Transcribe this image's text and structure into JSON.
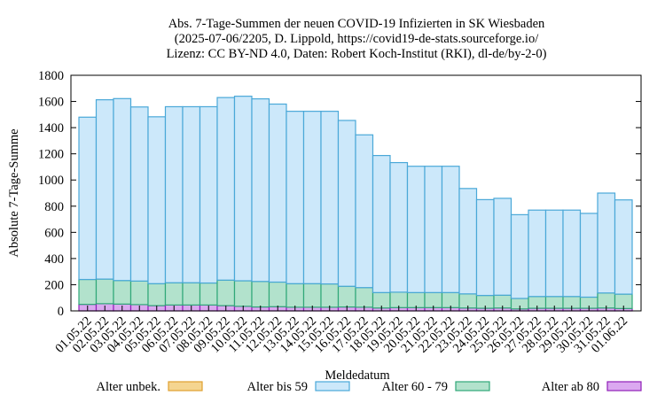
{
  "chart_data": {
    "type": "bar",
    "stacked": true,
    "title_lines": [
      "Abs. 7-Tage-Summen der neuen COVID-19 Infizierten in SK Wiesbaden",
      "(2025-07-06/2205, D. Lippold, https://covid19-de-stats.sourceforge.io/",
      "Lizenz: CC BY-ND 4.0, Daten: Robert Koch-Institut (RKI), dl-de/by-2-0)"
    ],
    "xlabel": "Meldedatum",
    "ylabel": "Absolute 7-Tage-Summe",
    "ylim": [
      0,
      1800
    ],
    "yticks": [
      0,
      200,
      400,
      600,
      800,
      1000,
      1200,
      1400,
      1600,
      1800
    ],
    "grid": false,
    "legend_position": "bottom",
    "categories": [
      "01.05.22",
      "02.05.22",
      "03.05.22",
      "04.05.22",
      "05.05.22",
      "06.05.22",
      "07.05.22",
      "08.05.22",
      "09.05.22",
      "10.05.22",
      "11.05.22",
      "12.05.22",
      "13.05.22",
      "14.05.22",
      "15.05.22",
      "16.05.22",
      "17.05.22",
      "18.05.22",
      "19.05.22",
      "20.05.22",
      "21.05.22",
      "22.05.22",
      "23.05.22",
      "24.05.22",
      "25.05.22",
      "26.05.22",
      "27.05.22",
      "28.05.22",
      "29.05.22",
      "30.05.22",
      "31.05.22",
      "01.06.22"
    ],
    "series": [
      {
        "name": "Alter unbek.",
        "color": "#f5d590",
        "stroke": "#e0a030",
        "values": [
          0,
          0,
          0,
          0,
          0,
          0,
          0,
          0,
          0,
          0,
          0,
          0,
          0,
          0,
          0,
          0,
          0,
          0,
          0,
          0,
          0,
          0,
          0,
          0,
          0,
          0,
          0,
          0,
          0,
          0,
          0,
          0
        ]
      },
      {
        "name": "Alter ab 80",
        "color": "#dba8f0",
        "stroke": "#9020b8",
        "values": [
          50,
          55,
          52,
          48,
          40,
          45,
          45,
          45,
          40,
          35,
          30,
          32,
          28,
          28,
          28,
          30,
          28,
          22,
          25,
          25,
          25,
          25,
          22,
          20,
          22,
          15,
          20,
          20,
          20,
          20,
          22,
          18
        ]
      },
      {
        "name": "Alter 60 - 79",
        "color": "#b2e2cc",
        "stroke": "#30a878",
        "values": [
          190,
          188,
          180,
          180,
          168,
          170,
          170,
          168,
          195,
          195,
          195,
          188,
          180,
          180,
          178,
          158,
          150,
          118,
          118,
          115,
          115,
          115,
          108,
          98,
          98,
          80,
          90,
          90,
          90,
          85,
          115,
          110
        ]
      },
      {
        "name": "Alter bis 59",
        "color": "#cce8fa",
        "stroke": "#4aa8d8",
        "values": [
          1240,
          1370,
          1390,
          1330,
          1275,
          1345,
          1345,
          1347,
          1395,
          1410,
          1395,
          1360,
          1317,
          1317,
          1319,
          1267,
          1167,
          1047,
          990,
          965,
          965,
          965,
          805,
          732,
          740,
          640,
          660,
          660,
          660,
          640,
          763,
          720
        ]
      }
    ]
  },
  "legend": [
    {
      "name": "Alter unbek.",
      "color": "#f5d590",
      "stroke": "#e0a030"
    },
    {
      "name": "Alter bis 59",
      "color": "#cce8fa",
      "stroke": "#4aa8d8"
    },
    {
      "name": "Alter 60 - 79",
      "color": "#b2e2cc",
      "stroke": "#30a878"
    },
    {
      "name": "Alter ab 80",
      "color": "#dba8f0",
      "stroke": "#9020b8"
    }
  ]
}
